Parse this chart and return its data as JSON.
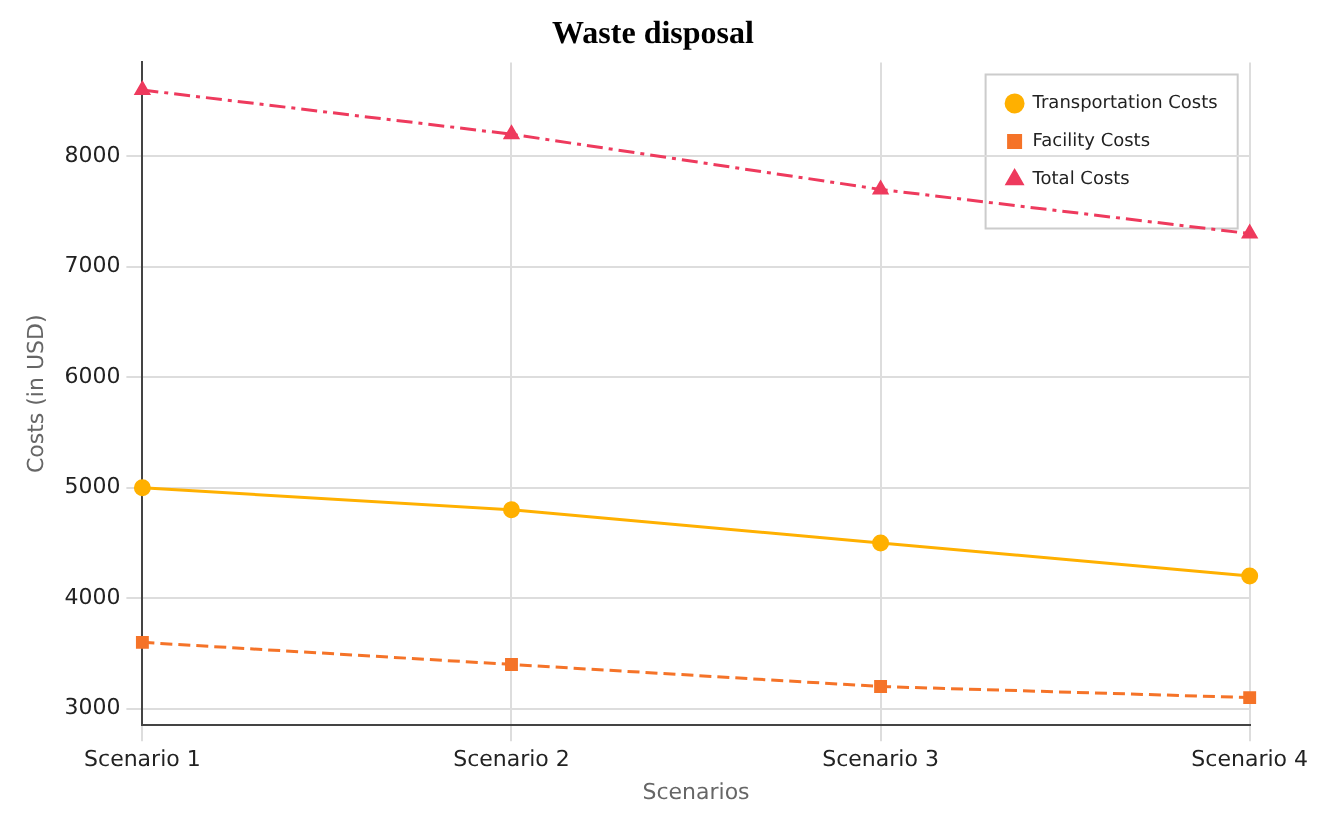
{
  "chart_data": {
    "type": "line",
    "title": "Waste disposal",
    "xlabel": "Scenarios",
    "ylabel": "Costs (in USD)",
    "categories": [
      "Scenario 1",
      "Scenario 2",
      "Scenario 3",
      "Scenario 4"
    ],
    "series": [
      {
        "name": "Transportation Costs",
        "color": "#ffb000",
        "values": [
          5000,
          4800,
          4500,
          4200
        ],
        "marker": "circle",
        "line_style": "solid"
      },
      {
        "name": "Facility Costs",
        "color": "#f57328",
        "values": [
          3600,
          3400,
          3200,
          3100
        ],
        "marker": "square",
        "line_style": "dashed"
      },
      {
        "name": "Total Costs",
        "color": "#ee3a5d",
        "values": [
          8600,
          8200,
          7700,
          7300
        ],
        "marker": "triangle",
        "line_style": "dashdot"
      }
    ],
    "ylim": [
      2850,
      8850
    ],
    "yticks": [
      3000,
      4000,
      5000,
      6000,
      7000,
      8000
    ],
    "grid": true,
    "legend": "top right"
  }
}
